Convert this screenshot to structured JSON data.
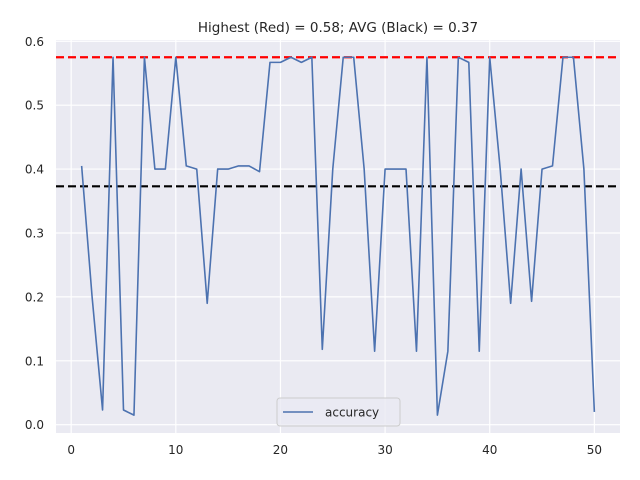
{
  "chart_data": {
    "type": "line",
    "title": "Highest (Red) = 0.58; AVG (Black) = 0.37",
    "xlabel": "",
    "ylabel": "",
    "xlim": [
      -1.45,
      52.45
    ],
    "ylim": [
      -0.013,
      0.602
    ],
    "xticks": [
      0,
      10,
      20,
      30,
      40,
      50
    ],
    "yticks": [
      0.0,
      0.1,
      0.2,
      0.3,
      0.4,
      0.5,
      0.6
    ],
    "xtick_labels": [
      "0",
      "10",
      "20",
      "30",
      "40",
      "50"
    ],
    "ytick_labels": [
      "0.0",
      "0.1",
      "0.2",
      "0.3",
      "0.4",
      "0.5",
      "0.6"
    ],
    "grid": true,
    "legend": "bottom-center",
    "series": [
      {
        "name": "accuracy",
        "color": "#4c72b0",
        "x": [
          1,
          2,
          3,
          4,
          5,
          6,
          7,
          8,
          9,
          10,
          11,
          12,
          13,
          14,
          15,
          16,
          17,
          18,
          19,
          20,
          21,
          22,
          23,
          24,
          25,
          26,
          27,
          28,
          29,
          30,
          31,
          32,
          33,
          34,
          35,
          36,
          37,
          38,
          39,
          40,
          41,
          42,
          43,
          44,
          45,
          46,
          47,
          48,
          49,
          50
        ],
        "y": [
          0.405,
          0.2,
          0.023,
          0.575,
          0.023,
          0.015,
          0.575,
          0.4,
          0.4,
          0.575,
          0.405,
          0.4,
          0.19,
          0.4,
          0.4,
          0.405,
          0.405,
          0.396,
          0.567,
          0.567,
          0.575,
          0.567,
          0.575,
          0.118,
          0.4,
          0.575,
          0.575,
          0.4,
          0.115,
          0.4,
          0.4,
          0.4,
          0.115,
          0.575,
          0.015,
          0.115,
          0.575,
          0.567,
          0.115,
          0.575,
          0.4,
          0.19,
          0.4,
          0.193,
          0.4,
          0.405,
          0.575,
          0.575,
          0.4,
          0.02
        ]
      }
    ],
    "hlines": [
      {
        "label": "Highest",
        "value": 0.575,
        "color": "#ff0000"
      },
      {
        "label": "AVG",
        "value": 0.373,
        "color": "#000000"
      }
    ]
  }
}
